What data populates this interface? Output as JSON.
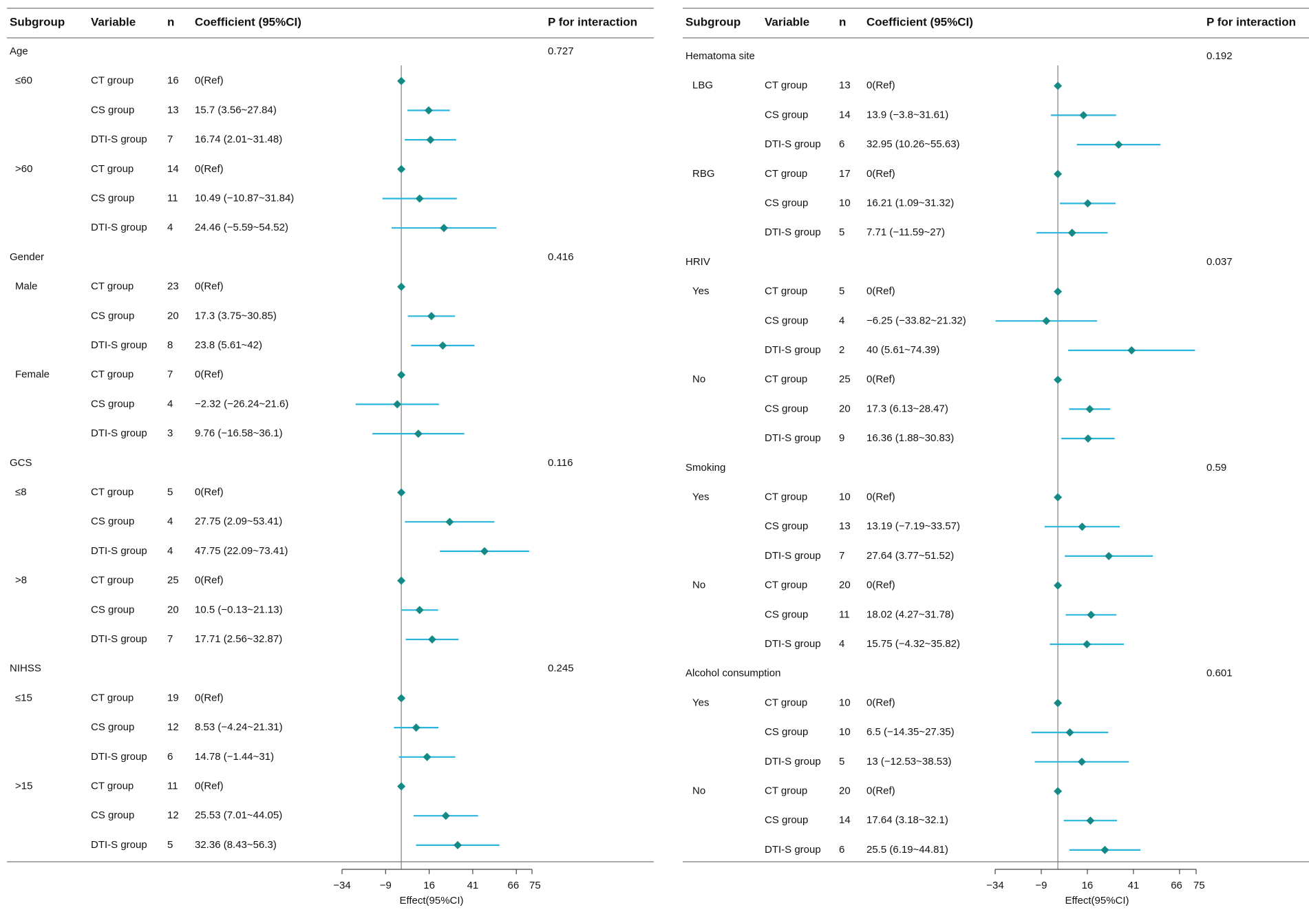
{
  "chart_data": [
    {
      "type": "forest",
      "headers": {
        "subgroup": "Subgroup",
        "variable": "Variable",
        "n": "n",
        "coef": "Coefficient (95%CI)",
        "p": "P for interaction"
      },
      "xlabel": "Effect(95%CI)",
      "xticks": [
        "−34",
        "−9",
        "16",
        "41",
        "66",
        "75"
      ],
      "xtick_values": [
        -34,
        -9,
        16,
        41,
        66,
        75
      ],
      "xlim": [
        -34,
        75
      ],
      "reference_line": 0,
      "groups": [
        {
          "name": "Age",
          "p": "0.727",
          "subgroups": [
            {
              "label": "≤60",
              "rows": [
                {
                  "variable": "CT group",
                  "n": "16",
                  "text": "0(Ref)",
                  "est": 0,
                  "lo": null,
                  "hi": null
                },
                {
                  "variable": "CS group",
                  "n": "13",
                  "text": "15.7 (3.56~27.84)",
                  "est": 15.7,
                  "lo": 3.56,
                  "hi": 27.84
                },
                {
                  "variable": "DTI-S group",
                  "n": "7",
                  "text": "16.74 (2.01~31.48)",
                  "est": 16.74,
                  "lo": 2.01,
                  "hi": 31.48
                }
              ]
            },
            {
              "label": ">60",
              "rows": [
                {
                  "variable": "CT group",
                  "n": "14",
                  "text": "0(Ref)",
                  "est": 0,
                  "lo": null,
                  "hi": null
                },
                {
                  "variable": "CS group",
                  "n": "11",
                  "text": "10.49 (−10.87~31.84)",
                  "est": 10.49,
                  "lo": -10.87,
                  "hi": 31.84
                },
                {
                  "variable": "DTI-S group",
                  "n": "4",
                  "text": "24.46 (−5.59~54.52)",
                  "est": 24.46,
                  "lo": -5.59,
                  "hi": 54.52
                }
              ]
            }
          ]
        },
        {
          "name": "Gender",
          "p": "0.416",
          "subgroups": [
            {
              "label": "Male",
              "rows": [
                {
                  "variable": "CT group",
                  "n": "23",
                  "text": "0(Ref)",
                  "est": 0,
                  "lo": null,
                  "hi": null
                },
                {
                  "variable": "CS group",
                  "n": "20",
                  "text": "17.3 (3.75~30.85)",
                  "est": 17.3,
                  "lo": 3.75,
                  "hi": 30.85
                },
                {
                  "variable": "DTI-S group",
                  "n": "8",
                  "text": "23.8 (5.61~42)",
                  "est": 23.8,
                  "lo": 5.61,
                  "hi": 42
                }
              ]
            },
            {
              "label": "Female",
              "rows": [
                {
                  "variable": "CT group",
                  "n": "7",
                  "text": "0(Ref)",
                  "est": 0,
                  "lo": null,
                  "hi": null
                },
                {
                  "variable": "CS group",
                  "n": "4",
                  "text": "−2.32 (−26.24~21.6)",
                  "est": -2.32,
                  "lo": -26.24,
                  "hi": 21.6
                },
                {
                  "variable": "DTI-S group",
                  "n": "3",
                  "text": "9.76 (−16.58~36.1)",
                  "est": 9.76,
                  "lo": -16.58,
                  "hi": 36.1
                }
              ]
            }
          ]
        },
        {
          "name": "GCS",
          "p": "0.116",
          "subgroups": [
            {
              "label": "≤8",
              "rows": [
                {
                  "variable": "CT group",
                  "n": "5",
                  "text": "0(Ref)",
                  "est": 0,
                  "lo": null,
                  "hi": null
                },
                {
                  "variable": "CS group",
                  "n": "4",
                  "text": "27.75 (2.09~53.41)",
                  "est": 27.75,
                  "lo": 2.09,
                  "hi": 53.41
                },
                {
                  "variable": "DTI-S group",
                  "n": "4",
                  "text": "47.75 (22.09~73.41)",
                  "est": 47.75,
                  "lo": 22.09,
                  "hi": 73.41
                }
              ]
            },
            {
              "label": ">8",
              "rows": [
                {
                  "variable": "CT group",
                  "n": "25",
                  "text": "0(Ref)",
                  "est": 0,
                  "lo": null,
                  "hi": null
                },
                {
                  "variable": "CS group",
                  "n": "20",
                  "text": "10.5 (−0.13~21.13)",
                  "est": 10.5,
                  "lo": -0.13,
                  "hi": 21.13
                },
                {
                  "variable": "DTI-S group",
                  "n": "7",
                  "text": "17.71 (2.56~32.87)",
                  "est": 17.71,
                  "lo": 2.56,
                  "hi": 32.87
                }
              ]
            }
          ]
        },
        {
          "name": "NIHSS",
          "p": "0.245",
          "subgroups": [
            {
              "label": "≤15",
              "rows": [
                {
                  "variable": "CT group",
                  "n": "19",
                  "text": "0(Ref)",
                  "est": 0,
                  "lo": null,
                  "hi": null
                },
                {
                  "variable": "CS group",
                  "n": "12",
                  "text": "8.53 (−4.24~21.31)",
                  "est": 8.53,
                  "lo": -4.24,
                  "hi": 21.31
                },
                {
                  "variable": "DTI-S group",
                  "n": "6",
                  "text": "14.78 (−1.44~31)",
                  "est": 14.78,
                  "lo": -1.44,
                  "hi": 31
                }
              ]
            },
            {
              "label": ">15",
              "rows": [
                {
                  "variable": "CT group",
                  "n": "11",
                  "text": "0(Ref)",
                  "est": 0,
                  "lo": null,
                  "hi": null
                },
                {
                  "variable": "CS group",
                  "n": "12",
                  "text": "25.53 (7.01~44.05)",
                  "est": 25.53,
                  "lo": 7.01,
                  "hi": 44.05
                },
                {
                  "variable": "DTI-S group",
                  "n": "5",
                  "text": "32.36 (8.43~56.3)",
                  "est": 32.36,
                  "lo": 8.43,
                  "hi": 56.3
                }
              ]
            }
          ]
        }
      ]
    },
    {
      "type": "forest",
      "headers": {
        "subgroup": "Subgroup",
        "variable": "Variable",
        "n": "n",
        "coef": "Coefficient (95%CI)",
        "p": "P for interaction"
      },
      "xlabel": "Effect(95%CI)",
      "xticks": [
        "−34",
        "−9",
        "16",
        "41",
        "66",
        "75"
      ],
      "xtick_values": [
        -34,
        -9,
        16,
        41,
        66,
        75
      ],
      "xlim": [
        -34,
        75
      ],
      "reference_line": 0,
      "groups": [
        {
          "name": "Hematoma site",
          "p": "0.192",
          "subgroups": [
            {
              "label": "LBG",
              "rows": [
                {
                  "variable": "CT group",
                  "n": "13",
                  "text": "0(Ref)",
                  "est": 0,
                  "lo": null,
                  "hi": null
                },
                {
                  "variable": "CS group",
                  "n": "14",
                  "text": "13.9 (−3.8~31.61)",
                  "est": 13.9,
                  "lo": -3.8,
                  "hi": 31.61
                },
                {
                  "variable": "DTI-S group",
                  "n": "6",
                  "text": "32.95 (10.26~55.63)",
                  "est": 32.95,
                  "lo": 10.26,
                  "hi": 55.63
                }
              ]
            },
            {
              "label": "RBG",
              "rows": [
                {
                  "variable": "CT group",
                  "n": "17",
                  "text": "0(Ref)",
                  "est": 0,
                  "lo": null,
                  "hi": null
                },
                {
                  "variable": "CS group",
                  "n": "10",
                  "text": "16.21 (1.09~31.32)",
                  "est": 16.21,
                  "lo": 1.09,
                  "hi": 31.32
                },
                {
                  "variable": "DTI-S group",
                  "n": "5",
                  "text": "7.71 (−11.59~27)",
                  "est": 7.71,
                  "lo": -11.59,
                  "hi": 27
                }
              ]
            }
          ]
        },
        {
          "name": "HRIV",
          "p": "0.037",
          "subgroups": [
            {
              "label": "Yes",
              "rows": [
                {
                  "variable": "CT group",
                  "n": "5",
                  "text": "0(Ref)",
                  "est": 0,
                  "lo": null,
                  "hi": null
                },
                {
                  "variable": "CS group",
                  "n": "4",
                  "text": "−6.25 (−33.82~21.32)",
                  "est": -6.25,
                  "lo": -33.82,
                  "hi": 21.32
                },
                {
                  "variable": "DTI-S group",
                  "n": "2",
                  "text": "40 (5.61~74.39)",
                  "est": 40,
                  "lo": 5.61,
                  "hi": 74.39
                }
              ]
            },
            {
              "label": "No",
              "rows": [
                {
                  "variable": "CT group",
                  "n": "25",
                  "text": "0(Ref)",
                  "est": 0,
                  "lo": null,
                  "hi": null
                },
                {
                  "variable": "CS group",
                  "n": "20",
                  "text": "17.3 (6.13~28.47)",
                  "est": 17.3,
                  "lo": 6.13,
                  "hi": 28.47
                },
                {
                  "variable": "DTI-S group",
                  "n": "9",
                  "text": "16.36 (1.88~30.83)",
                  "est": 16.36,
                  "lo": 1.88,
                  "hi": 30.83
                }
              ]
            }
          ]
        },
        {
          "name": "Smoking",
          "p": "0.59",
          "subgroups": [
            {
              "label": "Yes",
              "rows": [
                {
                  "variable": "CT group",
                  "n": "10",
                  "text": "0(Ref)",
                  "est": 0,
                  "lo": null,
                  "hi": null
                },
                {
                  "variable": "CS group",
                  "n": "13",
                  "text": "13.19 (−7.19~33.57)",
                  "est": 13.19,
                  "lo": -7.19,
                  "hi": 33.57
                },
                {
                  "variable": "DTI-S group",
                  "n": "7",
                  "text": "27.64 (3.77~51.52)",
                  "est": 27.64,
                  "lo": 3.77,
                  "hi": 51.52
                }
              ]
            },
            {
              "label": "No",
              "rows": [
                {
                  "variable": "CT group",
                  "n": "20",
                  "text": "0(Ref)",
                  "est": 0,
                  "lo": null,
                  "hi": null
                },
                {
                  "variable": "CS group",
                  "n": "11",
                  "text": "18.02 (4.27~31.78)",
                  "est": 18.02,
                  "lo": 4.27,
                  "hi": 31.78
                },
                {
                  "variable": "DTI-S group",
                  "n": "4",
                  "text": "15.75 (−4.32~35.82)",
                  "est": 15.75,
                  "lo": -4.32,
                  "hi": 35.82
                }
              ]
            }
          ]
        },
        {
          "name": "Alcohol consumption",
          "p": "0.601",
          "subgroups": [
            {
              "label": "Yes",
              "rows": [
                {
                  "variable": "CT group",
                  "n": "10",
                  "text": "0(Ref)",
                  "est": 0,
                  "lo": null,
                  "hi": null
                },
                {
                  "variable": "CS group",
                  "n": "10",
                  "text": "6.5 (−14.35~27.35)",
                  "est": 6.5,
                  "lo": -14.35,
                  "hi": 27.35
                },
                {
                  "variable": "DTI-S group",
                  "n": "5",
                  "text": "13 (−12.53~38.53)",
                  "est": 13,
                  "lo": -12.53,
                  "hi": 38.53
                }
              ]
            },
            {
              "label": "No",
              "rows": [
                {
                  "variable": "CT group",
                  "n": "20",
                  "text": "0(Ref)",
                  "est": 0,
                  "lo": null,
                  "hi": null
                },
                {
                  "variable": "CS group",
                  "n": "14",
                  "text": "17.64 (3.18~32.1)",
                  "est": 17.64,
                  "lo": 3.18,
                  "hi": 32.1
                },
                {
                  "variable": "DTI-S group",
                  "n": "6",
                  "text": "25.5 (6.19~44.81)",
                  "est": 25.5,
                  "lo": 6.19,
                  "hi": 44.81
                }
              ]
            }
          ]
        }
      ]
    }
  ],
  "colors": {
    "ci_line": "#29b6dd",
    "marker": "#138a86",
    "axis": "#444444",
    "ref_line": "#888888",
    "rule": "#777777"
  }
}
